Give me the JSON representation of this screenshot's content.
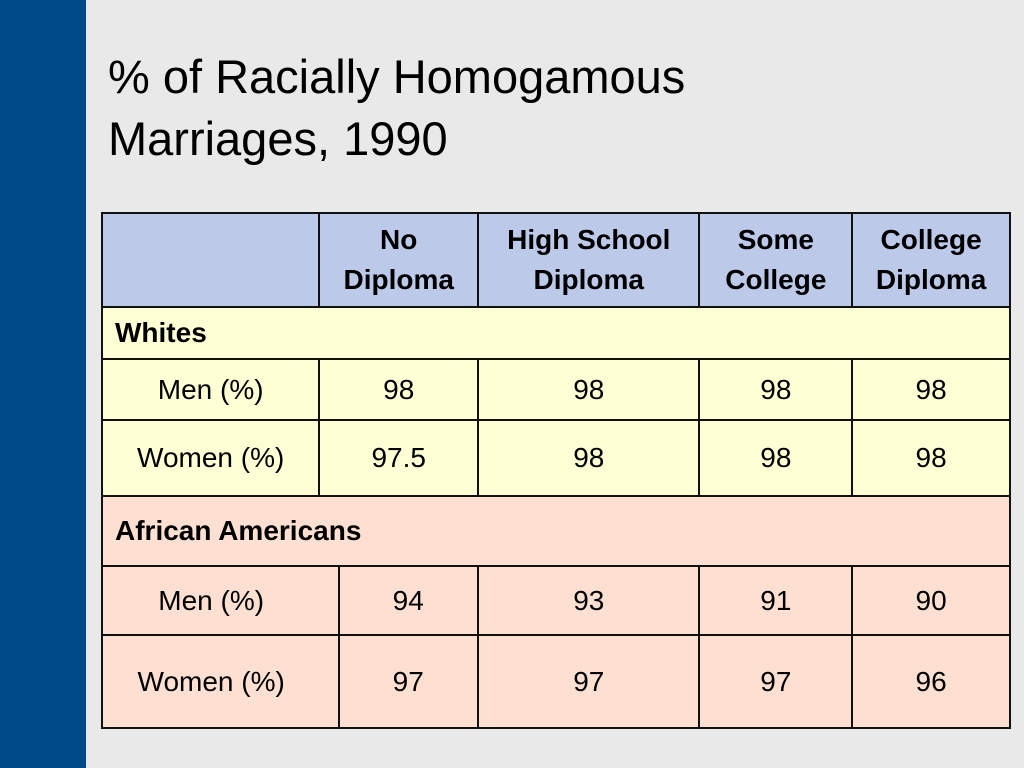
{
  "title": {
    "line1": "% of Racially Homogamous",
    "line2": "Marriages, 1990"
  },
  "table": {
    "columns": [
      {
        "line1": "No",
        "line2": "Diploma"
      },
      {
        "line1": "High School",
        "line2": "Diploma"
      },
      {
        "line1": "Some",
        "line2": "College"
      },
      {
        "line1": "College",
        "line2": "Diploma"
      }
    ],
    "groups": [
      {
        "name": "Whites",
        "rows": [
          {
            "label": "Men (%)",
            "values": [
              "98",
              "98",
              "98",
              "98"
            ]
          },
          {
            "label": "Women (%)",
            "values": [
              "97.5",
              "98",
              "98",
              "98"
            ]
          }
        ]
      },
      {
        "name": "African Americans",
        "rows": [
          {
            "label": "Men (%)",
            "values": [
              "94",
              "93",
              "91",
              "90"
            ]
          },
          {
            "label": "Women (%)",
            "values": [
              "97",
              "97",
              "97",
              "96"
            ]
          }
        ]
      }
    ]
  },
  "colors": {
    "sidebar": "#004a8a",
    "background": "#e9e9e9",
    "header_fill": "#bdc9e9",
    "whites_fill": "#ffffd6",
    "african_americans_fill": "#fde0d2"
  }
}
